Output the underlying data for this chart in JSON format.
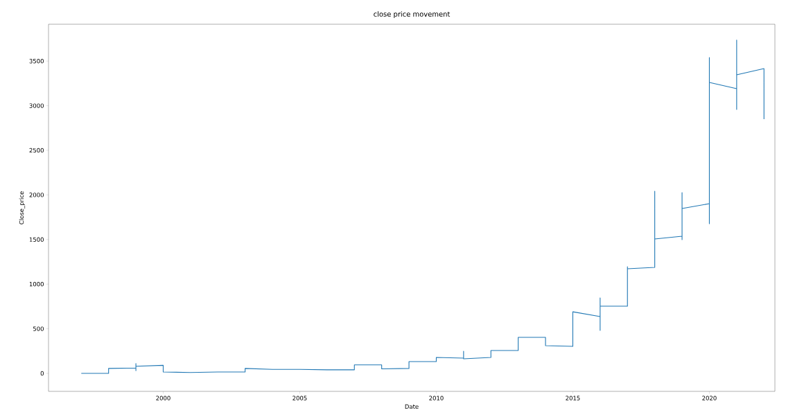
{
  "chart_data": {
    "type": "line",
    "title": "close price movement",
    "xlabel": "Date",
    "ylabel": "Close_price",
    "x": [
      1997,
      1998,
      1998,
      1999,
      1999,
      1999,
      1999,
      2000,
      2000,
      2001,
      2002,
      2003,
      2003,
      2004,
      2005,
      2006,
      2007,
      2007,
      2008,
      2008,
      2009,
      2009,
      2010,
      2010,
      2011,
      2011,
      2011,
      2012,
      2012,
      2013,
      2013,
      2013,
      2013,
      2014,
      2014,
      2015,
      2015,
      2016,
      2016,
      2016,
      2016,
      2017,
      2017,
      2017,
      2018,
      2018,
      2018,
      2019,
      2019,
      2019,
      2019,
      2020,
      2020,
      2020,
      2020,
      2021,
      2021,
      2021,
      2021,
      2022,
      2022
    ],
    "series": [
      {
        "color": "#1f77b4",
        "values": [
          0,
          0,
          55,
          60,
          110,
          30,
          80,
          90,
          15,
          10,
          15,
          15,
          55,
          45,
          45,
          40,
          40,
          95,
          95,
          50,
          55,
          132,
          132,
          178,
          171,
          248,
          163,
          178,
          256,
          256,
          404,
          260,
          404,
          404,
          310,
          303,
          690,
          637,
          846,
          481,
          753,
          753,
          1196,
          1172,
          1188,
          2042,
          1506,
          1537,
          1498,
          2026,
          1848,
          1902,
          1677,
          3540,
          3261,
          3191,
          2958,
          3735,
          3346,
          3416,
          2849
        ]
      }
    ],
    "xlim": [
      1995.8,
      2022.4
    ],
    "ylim": [
      -202,
      3913
    ],
    "xticks": [
      2000,
      2005,
      2010,
      2015,
      2020
    ],
    "yticks": [
      0,
      500,
      1000,
      1500,
      2000,
      2500,
      3000,
      3500
    ],
    "grid": false,
    "marker": "none",
    "line_style": "solid"
  }
}
